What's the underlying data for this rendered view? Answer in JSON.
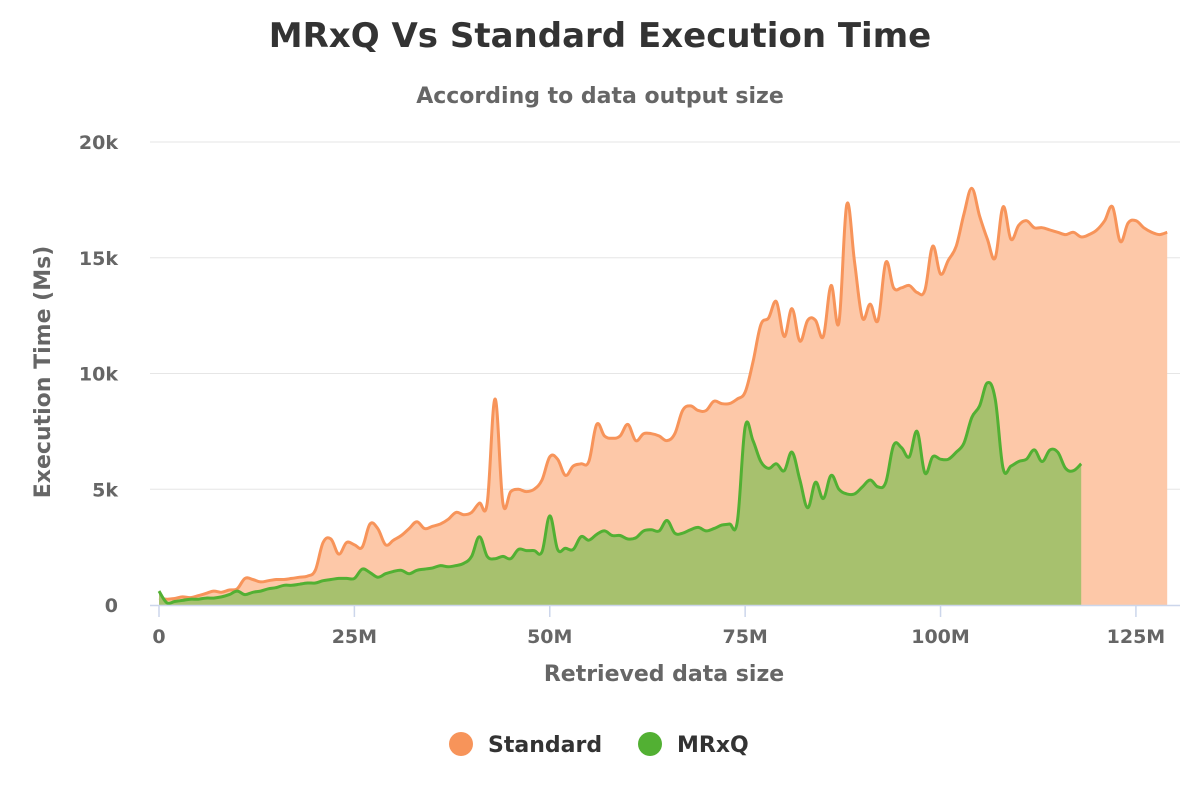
{
  "chart_data": {
    "type": "area",
    "title": "MRxQ Vs Standard Execution Time",
    "subtitle": "According to data output size",
    "xlabel": "Retrieved data size",
    "ylabel": "Execution Time (Ms)",
    "xlim": [
      0,
      130000000
    ],
    "ylim": [
      0,
      20000
    ],
    "x_ticks": [
      {
        "value": 0,
        "label": "0"
      },
      {
        "value": 25000000,
        "label": "25M"
      },
      {
        "value": 50000000,
        "label": "50M"
      },
      {
        "value": 75000000,
        "label": "75M"
      },
      {
        "value": 100000000,
        "label": "100M"
      },
      {
        "value": 125000000,
        "label": "125M"
      }
    ],
    "y_ticks": [
      {
        "value": 0,
        "label": "0"
      },
      {
        "value": 5000,
        "label": "5k"
      },
      {
        "value": 10000,
        "label": "10k"
      },
      {
        "value": 15000,
        "label": "15k"
      },
      {
        "value": 20000,
        "label": "20k"
      }
    ],
    "grid": true,
    "legend_position": "bottom-center",
    "series": [
      {
        "name": "Standard",
        "color": "#f7945a",
        "fill": "#fdc8a8",
        "points": [
          [
            0,
            300
          ],
          [
            1000000,
            250
          ],
          [
            2000000,
            280
          ],
          [
            3000000,
            350
          ],
          [
            4000000,
            320
          ],
          [
            5000000,
            400
          ],
          [
            6000000,
            500
          ],
          [
            7000000,
            600
          ],
          [
            8000000,
            550
          ],
          [
            9000000,
            650
          ],
          [
            10000000,
            700
          ],
          [
            11000000,
            1150
          ],
          [
            12000000,
            1100
          ],
          [
            13000000,
            1000
          ],
          [
            14000000,
            1050
          ],
          [
            15000000,
            1100
          ],
          [
            16000000,
            1100
          ],
          [
            17000000,
            1150
          ],
          [
            18000000,
            1200
          ],
          [
            19000000,
            1250
          ],
          [
            20000000,
            1500
          ],
          [
            21000000,
            2700
          ],
          [
            22000000,
            2850
          ],
          [
            23000000,
            2200
          ],
          [
            24000000,
            2700
          ],
          [
            25000000,
            2600
          ],
          [
            26000000,
            2500
          ],
          [
            27000000,
            3500
          ],
          [
            28000000,
            3300
          ],
          [
            29000000,
            2600
          ],
          [
            30000000,
            2800
          ],
          [
            31000000,
            3000
          ],
          [
            32000000,
            3300
          ],
          [
            33000000,
            3600
          ],
          [
            34000000,
            3300
          ],
          [
            35000000,
            3400
          ],
          [
            36000000,
            3500
          ],
          [
            37000000,
            3700
          ],
          [
            38000000,
            4000
          ],
          [
            39000000,
            3900
          ],
          [
            40000000,
            4000
          ],
          [
            41000000,
            4400
          ],
          [
            42000000,
            4400
          ],
          [
            43000000,
            8900
          ],
          [
            44000000,
            4400
          ],
          [
            45000000,
            4900
          ],
          [
            46000000,
            5000
          ],
          [
            47000000,
            4900
          ],
          [
            48000000,
            5000
          ],
          [
            49000000,
            5400
          ],
          [
            50000000,
            6400
          ],
          [
            51000000,
            6300
          ],
          [
            52000000,
            5600
          ],
          [
            53000000,
            6000
          ],
          [
            54000000,
            6100
          ],
          [
            55000000,
            6200
          ],
          [
            56000000,
            7800
          ],
          [
            57000000,
            7300
          ],
          [
            58000000,
            7200
          ],
          [
            59000000,
            7300
          ],
          [
            60000000,
            7800
          ],
          [
            61000000,
            7100
          ],
          [
            62000000,
            7400
          ],
          [
            63000000,
            7400
          ],
          [
            64000000,
            7300
          ],
          [
            65000000,
            7100
          ],
          [
            66000000,
            7400
          ],
          [
            67000000,
            8400
          ],
          [
            68000000,
            8600
          ],
          [
            69000000,
            8400
          ],
          [
            70000000,
            8400
          ],
          [
            71000000,
            8800
          ],
          [
            72000000,
            8700
          ],
          [
            73000000,
            8700
          ],
          [
            74000000,
            8900
          ],
          [
            75000000,
            9200
          ],
          [
            76000000,
            10500
          ],
          [
            77000000,
            12100
          ],
          [
            78000000,
            12400
          ],
          [
            79000000,
            13100
          ],
          [
            80000000,
            11600
          ],
          [
            81000000,
            12800
          ],
          [
            82000000,
            11400
          ],
          [
            83000000,
            12300
          ],
          [
            84000000,
            12300
          ],
          [
            85000000,
            11600
          ],
          [
            86000000,
            13800
          ],
          [
            87000000,
            12200
          ],
          [
            88000000,
            17300
          ],
          [
            89000000,
            14800
          ],
          [
            90000000,
            12400
          ],
          [
            91000000,
            13000
          ],
          [
            92000000,
            12300
          ],
          [
            93000000,
            14800
          ],
          [
            94000000,
            13700
          ],
          [
            95000000,
            13700
          ],
          [
            96000000,
            13800
          ],
          [
            97000000,
            13500
          ],
          [
            98000000,
            13600
          ],
          [
            99000000,
            15500
          ],
          [
            100000000,
            14300
          ],
          [
            101000000,
            14900
          ],
          [
            102000000,
            15500
          ],
          [
            103000000,
            16900
          ],
          [
            104000000,
            18000
          ],
          [
            105000000,
            16800
          ],
          [
            106000000,
            15800
          ],
          [
            107000000,
            15000
          ],
          [
            108000000,
            17200
          ],
          [
            109000000,
            15800
          ],
          [
            110000000,
            16400
          ],
          [
            111000000,
            16600
          ],
          [
            112000000,
            16300
          ],
          [
            113000000,
            16300
          ],
          [
            114000000,
            16200
          ],
          [
            115000000,
            16100
          ],
          [
            116000000,
            16000
          ],
          [
            117000000,
            16100
          ],
          [
            118000000,
            15900
          ],
          [
            119000000,
            16000
          ],
          [
            120000000,
            16200
          ],
          [
            121000000,
            16600
          ],
          [
            122000000,
            17200
          ],
          [
            123000000,
            15700
          ],
          [
            124000000,
            16500
          ],
          [
            125000000,
            16600
          ],
          [
            126000000,
            16300
          ],
          [
            127000000,
            16100
          ],
          [
            128000000,
            16000
          ],
          [
            129000000,
            16100
          ]
        ]
      },
      {
        "name": "MRxQ",
        "color": "#52b033",
        "fill": "#a7c16e",
        "points": [
          [
            0,
            600
          ],
          [
            1000000,
            100
          ],
          [
            2000000,
            150
          ],
          [
            3000000,
            200
          ],
          [
            4000000,
            250
          ],
          [
            5000000,
            250
          ],
          [
            6000000,
            300
          ],
          [
            7000000,
            300
          ],
          [
            8000000,
            350
          ],
          [
            9000000,
            450
          ],
          [
            10000000,
            600
          ],
          [
            11000000,
            450
          ],
          [
            12000000,
            550
          ],
          [
            13000000,
            600
          ],
          [
            14000000,
            700
          ],
          [
            15000000,
            750
          ],
          [
            16000000,
            850
          ],
          [
            17000000,
            850
          ],
          [
            18000000,
            900
          ],
          [
            19000000,
            950
          ],
          [
            20000000,
            950
          ],
          [
            21000000,
            1050
          ],
          [
            22000000,
            1100
          ],
          [
            23000000,
            1150
          ],
          [
            24000000,
            1150
          ],
          [
            25000000,
            1150
          ],
          [
            26000000,
            1550
          ],
          [
            27000000,
            1400
          ],
          [
            28000000,
            1200
          ],
          [
            29000000,
            1350
          ],
          [
            30000000,
            1450
          ],
          [
            31000000,
            1500
          ],
          [
            32000000,
            1350
          ],
          [
            33000000,
            1500
          ],
          [
            34000000,
            1550
          ],
          [
            35000000,
            1600
          ],
          [
            36000000,
            1700
          ],
          [
            37000000,
            1650
          ],
          [
            38000000,
            1700
          ],
          [
            39000000,
            1800
          ],
          [
            40000000,
            2100
          ],
          [
            41000000,
            2950
          ],
          [
            42000000,
            2100
          ],
          [
            43000000,
            2000
          ],
          [
            44000000,
            2100
          ],
          [
            45000000,
            2000
          ],
          [
            46000000,
            2400
          ],
          [
            47000000,
            2350
          ],
          [
            48000000,
            2350
          ],
          [
            49000000,
            2300
          ],
          [
            50000000,
            3850
          ],
          [
            51000000,
            2400
          ],
          [
            52000000,
            2450
          ],
          [
            53000000,
            2400
          ],
          [
            54000000,
            2950
          ],
          [
            55000000,
            2800
          ],
          [
            56000000,
            3050
          ],
          [
            57000000,
            3200
          ],
          [
            58000000,
            3000
          ],
          [
            59000000,
            3000
          ],
          [
            60000000,
            2850
          ],
          [
            61000000,
            2900
          ],
          [
            62000000,
            3200
          ],
          [
            63000000,
            3250
          ],
          [
            64000000,
            3200
          ],
          [
            65000000,
            3650
          ],
          [
            66000000,
            3100
          ],
          [
            67000000,
            3100
          ],
          [
            68000000,
            3250
          ],
          [
            69000000,
            3350
          ],
          [
            70000000,
            3200
          ],
          [
            71000000,
            3300
          ],
          [
            72000000,
            3450
          ],
          [
            73000000,
            3500
          ],
          [
            74000000,
            3600
          ],
          [
            75000000,
            7700
          ],
          [
            76000000,
            7100
          ],
          [
            77000000,
            6200
          ],
          [
            78000000,
            5900
          ],
          [
            79000000,
            6100
          ],
          [
            80000000,
            5800
          ],
          [
            81000000,
            6600
          ],
          [
            82000000,
            5400
          ],
          [
            83000000,
            4200
          ],
          [
            84000000,
            5300
          ],
          [
            85000000,
            4600
          ],
          [
            86000000,
            5600
          ],
          [
            87000000,
            5000
          ],
          [
            88000000,
            4800
          ],
          [
            89000000,
            4800
          ],
          [
            90000000,
            5100
          ],
          [
            91000000,
            5400
          ],
          [
            92000000,
            5100
          ],
          [
            93000000,
            5300
          ],
          [
            94000000,
            6900
          ],
          [
            95000000,
            6800
          ],
          [
            96000000,
            6400
          ],
          [
            97000000,
            7500
          ],
          [
            98000000,
            5700
          ],
          [
            99000000,
            6400
          ],
          [
            100000000,
            6300
          ],
          [
            101000000,
            6300
          ],
          [
            102000000,
            6600
          ],
          [
            103000000,
            7000
          ],
          [
            104000000,
            8100
          ],
          [
            105000000,
            8600
          ],
          [
            106000000,
            9600
          ],
          [
            107000000,
            8900
          ],
          [
            108000000,
            5900
          ],
          [
            109000000,
            6000
          ],
          [
            110000000,
            6200
          ],
          [
            111000000,
            6300
          ],
          [
            112000000,
            6700
          ],
          [
            113000000,
            6200
          ],
          [
            114000000,
            6700
          ],
          [
            115000000,
            6600
          ],
          [
            116000000,
            5900
          ],
          [
            117000000,
            5800
          ],
          [
            118000000,
            6100
          ]
        ]
      }
    ]
  }
}
